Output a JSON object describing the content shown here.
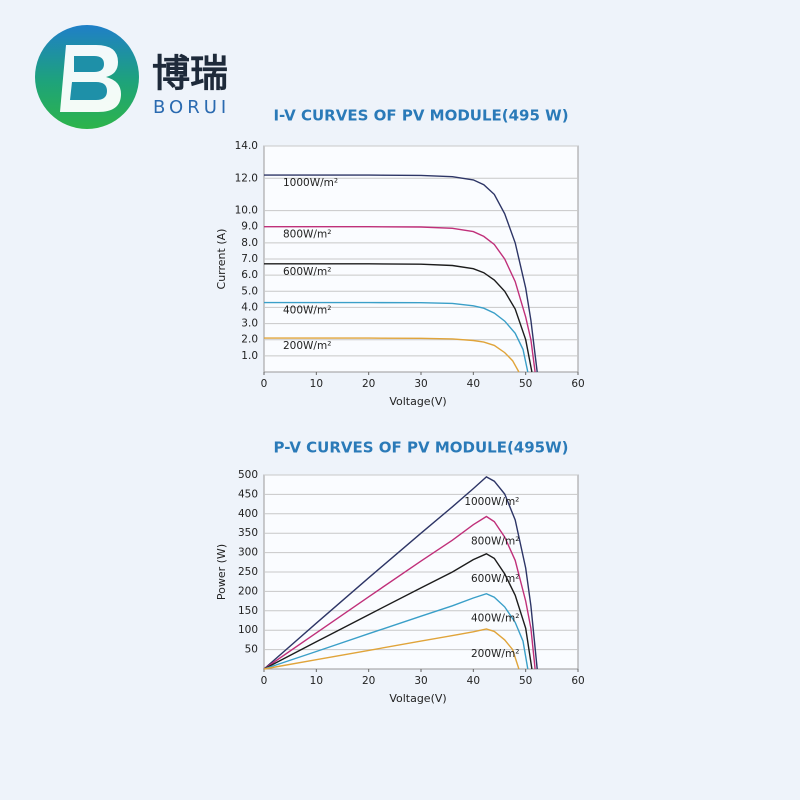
{
  "logo": {
    "name": "博瑞",
    "latin": "BORUI"
  },
  "chart_data": [
    {
      "type": "line",
      "title": "I-V CURVES OF PV MODULE(495 W)",
      "x_label": "Voltage(V)",
      "y_label": "Current (A)",
      "xlim": [
        0,
        60
      ],
      "xticks": [
        0,
        10,
        20,
        30,
        40,
        50,
        60
      ],
      "ylim": [
        0,
        14
      ],
      "yticks": [
        {
          "value": 1,
          "label": "1.0"
        },
        {
          "value": 2,
          "label": "2.0"
        },
        {
          "value": 3,
          "label": "3.0"
        },
        {
          "value": 4,
          "label": "4.0"
        },
        {
          "value": 5,
          "label": "5.0"
        },
        {
          "value": 6,
          "label": "6.0"
        },
        {
          "value": 7,
          "label": "7.0"
        },
        {
          "value": 8,
          "label": "8.0"
        },
        {
          "value": 9,
          "label": "9.0"
        },
        {
          "value": 10,
          "label": "10.0"
        },
        {
          "value": 12,
          "label": "12.0"
        },
        {
          "value": 14,
          "label": "14.0"
        }
      ],
      "grid": true,
      "label_position": "left",
      "series": [
        {
          "name": "1000W/m²",
          "color": "#2d3566",
          "x": [
            0,
            10,
            20,
            30,
            36,
            40,
            42,
            44,
            46,
            48,
            50,
            51,
            52.2
          ],
          "values": [
            12.2,
            12.2,
            12.2,
            12.18,
            12.1,
            11.9,
            11.6,
            11.0,
            9.8,
            8.0,
            5.2,
            3.2,
            0
          ]
        },
        {
          "name": "800W/m²",
          "color": "#c0307a",
          "x": [
            0,
            10,
            20,
            30,
            36,
            40,
            42,
            44,
            46,
            48,
            50,
            51,
            51.8
          ],
          "values": [
            9.0,
            9.0,
            9.0,
            8.98,
            8.9,
            8.7,
            8.4,
            7.9,
            7.0,
            5.6,
            3.4,
            2.0,
            0
          ]
        },
        {
          "name": "600W/m²",
          "color": "#1c1c1c",
          "x": [
            0,
            10,
            20,
            30,
            36,
            40,
            42,
            44,
            46,
            48,
            50,
            51.2
          ],
          "values": [
            6.7,
            6.7,
            6.7,
            6.68,
            6.6,
            6.4,
            6.15,
            5.7,
            5.0,
            3.9,
            2.0,
            0
          ]
        },
        {
          "name": "400W/m²",
          "color": "#3a9fc8",
          "x": [
            0,
            10,
            20,
            30,
            36,
            40,
            42,
            44,
            46,
            48,
            49.5,
            50.4
          ],
          "values": [
            4.3,
            4.3,
            4.3,
            4.29,
            4.25,
            4.1,
            3.95,
            3.65,
            3.15,
            2.4,
            1.4,
            0
          ]
        },
        {
          "name": "200W/m²",
          "color": "#e0a43a",
          "x": [
            0,
            10,
            20,
            30,
            36,
            40,
            42,
            44,
            46,
            47.5,
            48.7
          ],
          "values": [
            2.1,
            2.1,
            2.1,
            2.09,
            2.05,
            1.95,
            1.85,
            1.65,
            1.2,
            0.7,
            0
          ]
        }
      ]
    },
    {
      "type": "line",
      "title": "P-V CURVES OF PV MODULE(495W)",
      "x_label": "Voltage(V)",
      "y_label": "Power (W)",
      "xlim": [
        0,
        60
      ],
      "xticks": [
        0,
        10,
        20,
        30,
        40,
        50,
        60
      ],
      "ylim": [
        0,
        500
      ],
      "yticks": [
        50,
        100,
        150,
        200,
        250,
        300,
        350,
        400,
        450,
        500
      ],
      "grid": true,
      "label_position": "peak",
      "series": [
        {
          "name": "1000W/m²",
          "color": "#2d3566",
          "x": [
            0,
            10,
            20,
            30,
            36,
            40,
            42.5,
            44,
            46,
            48,
            50,
            51,
            52.2
          ],
          "values": [
            0,
            118,
            235,
            350,
            418,
            465,
            495,
            484,
            451,
            384,
            260,
            163,
            0
          ]
        },
        {
          "name": "800W/m²",
          "color": "#c0307a",
          "x": [
            0,
            10,
            20,
            30,
            36,
            40,
            42.5,
            44,
            46,
            48,
            50,
            51,
            51.8
          ],
          "values": [
            0,
            93,
            186,
            278,
            332,
            372,
            393,
            380,
            340,
            280,
            175,
            105,
            0
          ]
        },
        {
          "name": "600W/m²",
          "color": "#1c1c1c",
          "x": [
            0,
            10,
            20,
            30,
            36,
            40,
            42.5,
            44,
            46,
            48,
            50,
            51.2
          ],
          "values": [
            0,
            70,
            140,
            209,
            250,
            282,
            297,
            285,
            245,
            190,
            105,
            0
          ]
        },
        {
          "name": "400W/m²",
          "color": "#3a9fc8",
          "x": [
            0,
            10,
            20,
            30,
            36,
            40,
            42.5,
            44,
            46,
            48,
            49.5,
            50.4
          ],
          "values": [
            0,
            45,
            91,
            136,
            163,
            183,
            194,
            185,
            160,
            120,
            72,
            0
          ]
        },
        {
          "name": "200W/m²",
          "color": "#e0a43a",
          "x": [
            0,
            10,
            20,
            30,
            36,
            40,
            42.5,
            44,
            46,
            47.5,
            48.7
          ],
          "values": [
            0,
            24,
            48,
            72,
            86,
            96,
            103,
            97,
            75,
            50,
            0
          ]
        }
      ]
    }
  ]
}
